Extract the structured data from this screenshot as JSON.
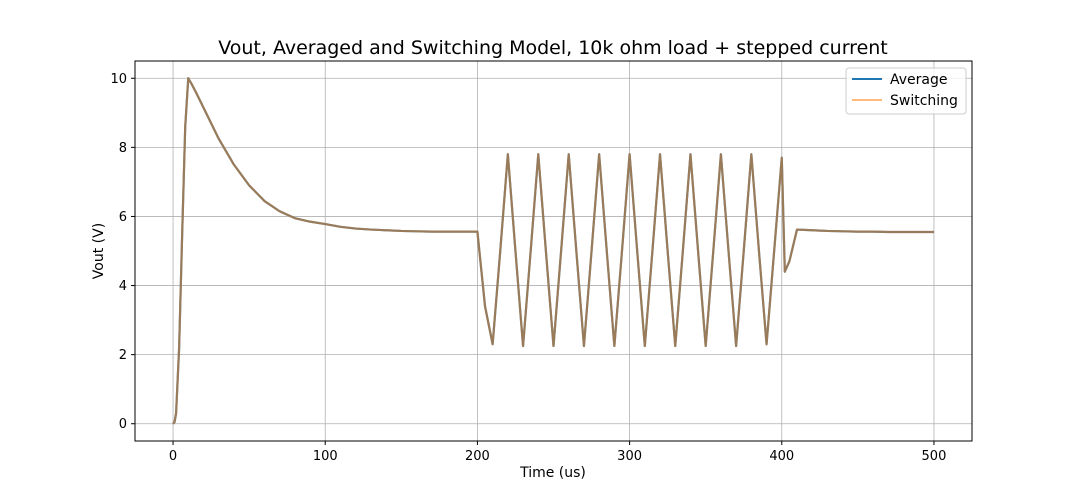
{
  "chart_data": {
    "type": "line",
    "title": "Vout, Averaged and Switching Model, 10k ohm load + stepped current",
    "xlabel": "Time (us)",
    "ylabel": "Vout (V)",
    "xlim": [
      -25,
      525
    ],
    "ylim": [
      -0.5,
      10.5
    ],
    "xticks": [
      0,
      100,
      200,
      300,
      400,
      500
    ],
    "yticks": [
      0,
      2,
      4,
      6,
      8,
      10
    ],
    "grid": true,
    "legend": "top-right",
    "series": [
      {
        "name": "Average",
        "color": "#1f77b4"
      },
      {
        "name": "Switching",
        "color": "#ff7f0e"
      }
    ],
    "x": [
      0,
      1,
      2,
      4,
      6,
      8,
      10,
      12,
      15,
      20,
      30,
      40,
      50,
      60,
      70,
      80,
      90,
      100,
      110,
      120,
      130,
      140,
      150,
      160,
      170,
      180,
      190,
      200,
      205,
      210,
      215,
      220,
      225,
      230,
      235,
      240,
      245,
      250,
      255,
      260,
      265,
      270,
      275,
      280,
      285,
      290,
      295,
      300,
      305,
      310,
      315,
      320,
      325,
      330,
      335,
      340,
      345,
      350,
      355,
      360,
      365,
      370,
      375,
      380,
      385,
      390,
      395,
      400,
      402,
      405,
      410,
      420,
      430,
      440,
      450,
      460,
      470,
      480,
      490,
      500
    ],
    "y": [
      0,
      0.05,
      0.3,
      2.2,
      5.5,
      8.6,
      10.0,
      9.85,
      9.6,
      9.15,
      8.25,
      7.5,
      6.9,
      6.45,
      6.15,
      5.95,
      5.85,
      5.78,
      5.7,
      5.65,
      5.62,
      5.6,
      5.58,
      5.57,
      5.56,
      5.56,
      5.56,
      5.56,
      3.4,
      2.3,
      5.0,
      7.8,
      5.0,
      2.25,
      5.0,
      7.8,
      5.0,
      2.25,
      5.0,
      7.8,
      5.0,
      2.25,
      5.0,
      7.8,
      5.0,
      2.25,
      5.0,
      7.8,
      5.0,
      2.25,
      5.0,
      7.8,
      5.0,
      2.25,
      5.0,
      7.8,
      5.0,
      2.25,
      5.0,
      7.8,
      5.0,
      2.25,
      5.0,
      7.8,
      5.0,
      2.3,
      5.0,
      7.7,
      4.4,
      4.7,
      5.62,
      5.6,
      5.58,
      5.57,
      5.56,
      5.56,
      5.55,
      5.55,
      5.55,
      5.55
    ]
  }
}
